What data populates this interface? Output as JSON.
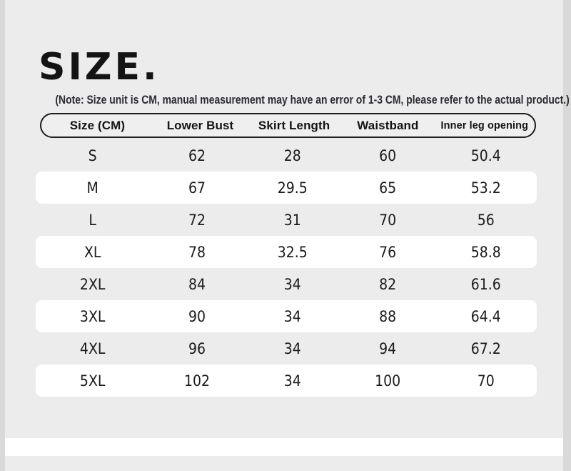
{
  "page": {
    "title": "SIZE.",
    "note": "(Note: Size unit is CM, manual measurement may have an error of 1-3 CM, please refer to the actual product.)"
  },
  "table": {
    "headers": [
      "Size (CM)",
      "Lower Bust",
      "Skirt Length",
      "Waistband",
      "Inner leg opening"
    ],
    "rows": [
      [
        "S",
        "62",
        "28",
        "60",
        "50.4"
      ],
      [
        "M",
        "67",
        "29.5",
        "65",
        "53.2"
      ],
      [
        "L",
        "72",
        "31",
        "70",
        "56"
      ],
      [
        "XL",
        "78",
        "32.5",
        "76",
        "58.8"
      ],
      [
        "2XL",
        "84",
        "34",
        "82",
        "61.6"
      ],
      [
        "3XL",
        "90",
        "34",
        "88",
        "64.4"
      ],
      [
        "4XL",
        "96",
        "34",
        "94",
        "67.2"
      ],
      [
        "5XL",
        "102",
        "34",
        "100",
        "70"
      ]
    ]
  },
  "colors": {
    "background": "#ececec",
    "edge_strip": "#d9d9d9",
    "row_highlight": "#ffffff",
    "header_fill": "#efefef",
    "table_border": "#1c1c1c",
    "title_text": "#141414",
    "note_text": "#2d2a33",
    "text": "#1b1b1b"
  }
}
